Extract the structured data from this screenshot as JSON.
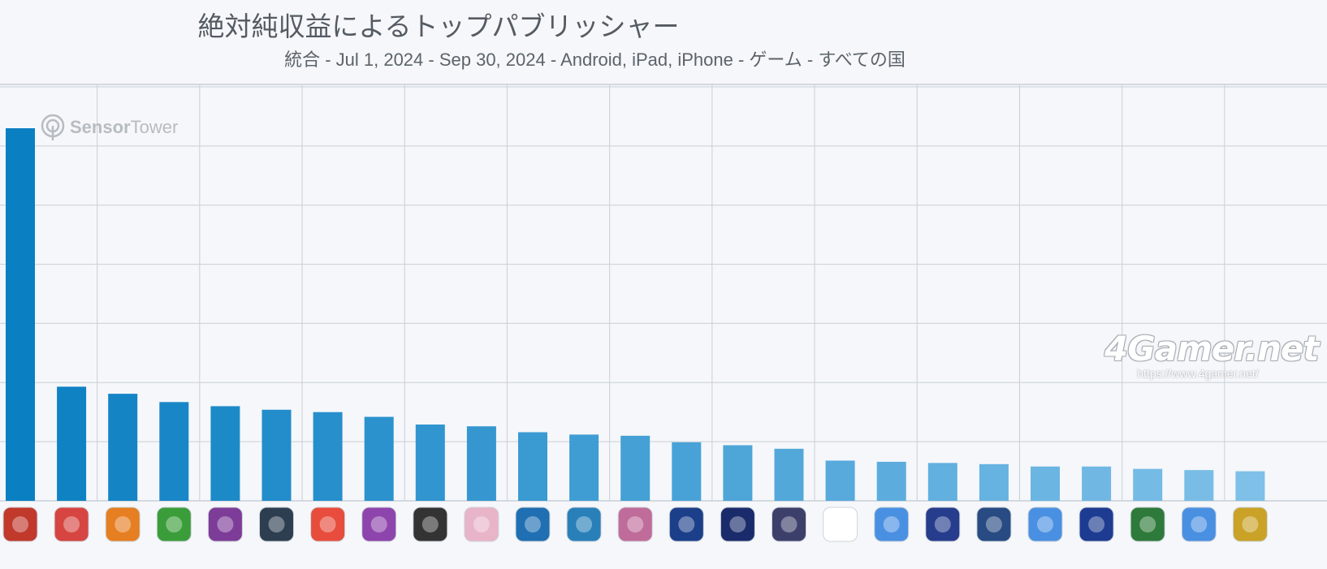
{
  "header": {
    "title": "絶対純収益によるトップパブリッシャー",
    "subtitle": "統合 - Jul 1, 2024 - Sep 30, 2024 - Android, iPad, iPhone - ゲーム - すべての国"
  },
  "watermark_sensortower": {
    "name_bold": "Sensor",
    "name_light": "Tower"
  },
  "watermark_4gamer": {
    "logo": "4Gamer.net",
    "url": "https://www.4gamer.net/"
  },
  "colors": {
    "bar_first": "#0a7fc2",
    "bar_last": "#7ec0e8",
    "grid": "#c9cfd8",
    "background": "#f5f7fa"
  },
  "chart_data": {
    "type": "bar",
    "title": "絶対純収益によるトップパブリッシャー",
    "subtitle": "統合 - Jul 1, 2024 - Sep 30, 2024 - Android, iPad, iPhone - ゲーム - すべての国",
    "xlabel": "",
    "ylabel": "",
    "y_tick_labels_shown": false,
    "grid": true,
    "legend": "none",
    "ylim": [
      0,
      7
    ],
    "values": [
      6.3,
      1.93,
      1.81,
      1.67,
      1.6,
      1.54,
      1.5,
      1.42,
      1.29,
      1.26,
      1.16,
      1.12,
      1.1,
      0.99,
      0.94,
      0.88,
      0.68,
      0.66,
      0.64,
      0.62,
      0.58,
      0.58,
      0.54,
      0.52,
      0.5
    ],
    "category_icons": [
      "publisher-icon-red-warrior",
      "publisher-icon-monopoly",
      "publisher-icon-candy",
      "publisher-icon-green-field",
      "publisher-icon-yellow-glyph",
      "publisher-icon-brawl-skull",
      "publisher-icon-orange-dog",
      "publisher-icon-king-character",
      "publisher-icon-roblox",
      "publisher-icon-anime-girl",
      "publisher-icon-blue-globe",
      "publisher-icon-bingo",
      "publisher-icon-pig-character",
      "publisher-icon-dragon-ball",
      "publisher-icon-casino",
      "publisher-icon-dark-hero",
      "publisher-icon-pokeball",
      "publisher-icon-puzzle-x2",
      "publisher-icon-fighter",
      "publisher-icon-afk",
      "publisher-icon-puzzle-x2-alt",
      "publisher-icon-football-player",
      "publisher-icon-ea-fc",
      "publisher-icon-puzzle-x5",
      "publisher-icon-tank"
    ]
  }
}
